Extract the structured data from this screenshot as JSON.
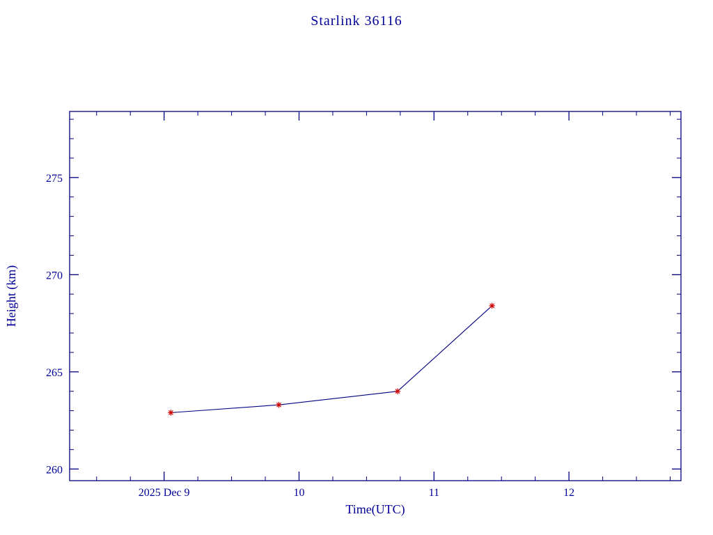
{
  "chart_data": {
    "type": "line",
    "title": "Starlink 36116",
    "xlabel": "Time(UTC)",
    "ylabel": "Height (km)",
    "x": [
      9.05,
      9.85,
      10.73,
      11.43
    ],
    "y": [
      262.9,
      263.3,
      264.0,
      268.4
    ],
    "xlim": [
      8.3,
      12.83
    ],
    "ylim": [
      259.4,
      278.4
    ],
    "xticks": [
      9,
      10,
      11,
      12
    ],
    "xtick_labels": [
      "2025 Dec  9",
      "10",
      "11",
      "12"
    ],
    "yticks": [
      260,
      265,
      270,
      275
    ],
    "ytick_labels": [
      "260",
      "265",
      "270",
      "275"
    ],
    "x_minor_step": 0.25,
    "y_minor_step": 1,
    "grid": false,
    "legend": "none",
    "line_color": "#000080",
    "marker_color": "#cc0000",
    "marker_style": "asterisk",
    "axis_color": "#000080",
    "text_color": "#000099"
  }
}
